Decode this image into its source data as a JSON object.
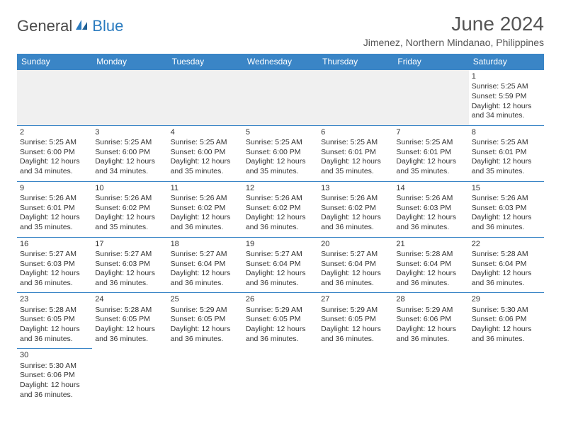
{
  "header": {
    "logo_general": "General",
    "logo_blue": "Blue",
    "title": "June 2024",
    "location": "Jimenez, Northern Mindanao, Philippines"
  },
  "colors": {
    "header_bg": "#3a85c6",
    "header_text": "#ffffff",
    "cell_border": "#3a85c6",
    "empty_bg": "#f0f0f0",
    "logo_blue": "#2a7bbf",
    "text": "#333333"
  },
  "weekdays": [
    "Sunday",
    "Monday",
    "Tuesday",
    "Wednesday",
    "Thursday",
    "Friday",
    "Saturday"
  ],
  "weeks": [
    [
      null,
      null,
      null,
      null,
      null,
      null,
      {
        "n": "1",
        "sr": "Sunrise: 5:25 AM",
        "ss": "Sunset: 5:59 PM",
        "d1": "Daylight: 12 hours",
        "d2": "and 34 minutes."
      }
    ],
    [
      {
        "n": "2",
        "sr": "Sunrise: 5:25 AM",
        "ss": "Sunset: 6:00 PM",
        "d1": "Daylight: 12 hours",
        "d2": "and 34 minutes."
      },
      {
        "n": "3",
        "sr": "Sunrise: 5:25 AM",
        "ss": "Sunset: 6:00 PM",
        "d1": "Daylight: 12 hours",
        "d2": "and 34 minutes."
      },
      {
        "n": "4",
        "sr": "Sunrise: 5:25 AM",
        "ss": "Sunset: 6:00 PM",
        "d1": "Daylight: 12 hours",
        "d2": "and 35 minutes."
      },
      {
        "n": "5",
        "sr": "Sunrise: 5:25 AM",
        "ss": "Sunset: 6:00 PM",
        "d1": "Daylight: 12 hours",
        "d2": "and 35 minutes."
      },
      {
        "n": "6",
        "sr": "Sunrise: 5:25 AM",
        "ss": "Sunset: 6:01 PM",
        "d1": "Daylight: 12 hours",
        "d2": "and 35 minutes."
      },
      {
        "n": "7",
        "sr": "Sunrise: 5:25 AM",
        "ss": "Sunset: 6:01 PM",
        "d1": "Daylight: 12 hours",
        "d2": "and 35 minutes."
      },
      {
        "n": "8",
        "sr": "Sunrise: 5:25 AM",
        "ss": "Sunset: 6:01 PM",
        "d1": "Daylight: 12 hours",
        "d2": "and 35 minutes."
      }
    ],
    [
      {
        "n": "9",
        "sr": "Sunrise: 5:26 AM",
        "ss": "Sunset: 6:01 PM",
        "d1": "Daylight: 12 hours",
        "d2": "and 35 minutes."
      },
      {
        "n": "10",
        "sr": "Sunrise: 5:26 AM",
        "ss": "Sunset: 6:02 PM",
        "d1": "Daylight: 12 hours",
        "d2": "and 35 minutes."
      },
      {
        "n": "11",
        "sr": "Sunrise: 5:26 AM",
        "ss": "Sunset: 6:02 PM",
        "d1": "Daylight: 12 hours",
        "d2": "and 36 minutes."
      },
      {
        "n": "12",
        "sr": "Sunrise: 5:26 AM",
        "ss": "Sunset: 6:02 PM",
        "d1": "Daylight: 12 hours",
        "d2": "and 36 minutes."
      },
      {
        "n": "13",
        "sr": "Sunrise: 5:26 AM",
        "ss": "Sunset: 6:02 PM",
        "d1": "Daylight: 12 hours",
        "d2": "and 36 minutes."
      },
      {
        "n": "14",
        "sr": "Sunrise: 5:26 AM",
        "ss": "Sunset: 6:03 PM",
        "d1": "Daylight: 12 hours",
        "d2": "and 36 minutes."
      },
      {
        "n": "15",
        "sr": "Sunrise: 5:26 AM",
        "ss": "Sunset: 6:03 PM",
        "d1": "Daylight: 12 hours",
        "d2": "and 36 minutes."
      }
    ],
    [
      {
        "n": "16",
        "sr": "Sunrise: 5:27 AM",
        "ss": "Sunset: 6:03 PM",
        "d1": "Daylight: 12 hours",
        "d2": "and 36 minutes."
      },
      {
        "n": "17",
        "sr": "Sunrise: 5:27 AM",
        "ss": "Sunset: 6:03 PM",
        "d1": "Daylight: 12 hours",
        "d2": "and 36 minutes."
      },
      {
        "n": "18",
        "sr": "Sunrise: 5:27 AM",
        "ss": "Sunset: 6:04 PM",
        "d1": "Daylight: 12 hours",
        "d2": "and 36 minutes."
      },
      {
        "n": "19",
        "sr": "Sunrise: 5:27 AM",
        "ss": "Sunset: 6:04 PM",
        "d1": "Daylight: 12 hours",
        "d2": "and 36 minutes."
      },
      {
        "n": "20",
        "sr": "Sunrise: 5:27 AM",
        "ss": "Sunset: 6:04 PM",
        "d1": "Daylight: 12 hours",
        "d2": "and 36 minutes."
      },
      {
        "n": "21",
        "sr": "Sunrise: 5:28 AM",
        "ss": "Sunset: 6:04 PM",
        "d1": "Daylight: 12 hours",
        "d2": "and 36 minutes."
      },
      {
        "n": "22",
        "sr": "Sunrise: 5:28 AM",
        "ss": "Sunset: 6:04 PM",
        "d1": "Daylight: 12 hours",
        "d2": "and 36 minutes."
      }
    ],
    [
      {
        "n": "23",
        "sr": "Sunrise: 5:28 AM",
        "ss": "Sunset: 6:05 PM",
        "d1": "Daylight: 12 hours",
        "d2": "and 36 minutes."
      },
      {
        "n": "24",
        "sr": "Sunrise: 5:28 AM",
        "ss": "Sunset: 6:05 PM",
        "d1": "Daylight: 12 hours",
        "d2": "and 36 minutes."
      },
      {
        "n": "25",
        "sr": "Sunrise: 5:29 AM",
        "ss": "Sunset: 6:05 PM",
        "d1": "Daylight: 12 hours",
        "d2": "and 36 minutes."
      },
      {
        "n": "26",
        "sr": "Sunrise: 5:29 AM",
        "ss": "Sunset: 6:05 PM",
        "d1": "Daylight: 12 hours",
        "d2": "and 36 minutes."
      },
      {
        "n": "27",
        "sr": "Sunrise: 5:29 AM",
        "ss": "Sunset: 6:05 PM",
        "d1": "Daylight: 12 hours",
        "d2": "and 36 minutes."
      },
      {
        "n": "28",
        "sr": "Sunrise: 5:29 AM",
        "ss": "Sunset: 6:06 PM",
        "d1": "Daylight: 12 hours",
        "d2": "and 36 minutes."
      },
      {
        "n": "29",
        "sr": "Sunrise: 5:30 AM",
        "ss": "Sunset: 6:06 PM",
        "d1": "Daylight: 12 hours",
        "d2": "and 36 minutes."
      }
    ],
    [
      {
        "n": "30",
        "sr": "Sunrise: 5:30 AM",
        "ss": "Sunset: 6:06 PM",
        "d1": "Daylight: 12 hours",
        "d2": "and 36 minutes."
      },
      null,
      null,
      null,
      null,
      null,
      null
    ]
  ]
}
